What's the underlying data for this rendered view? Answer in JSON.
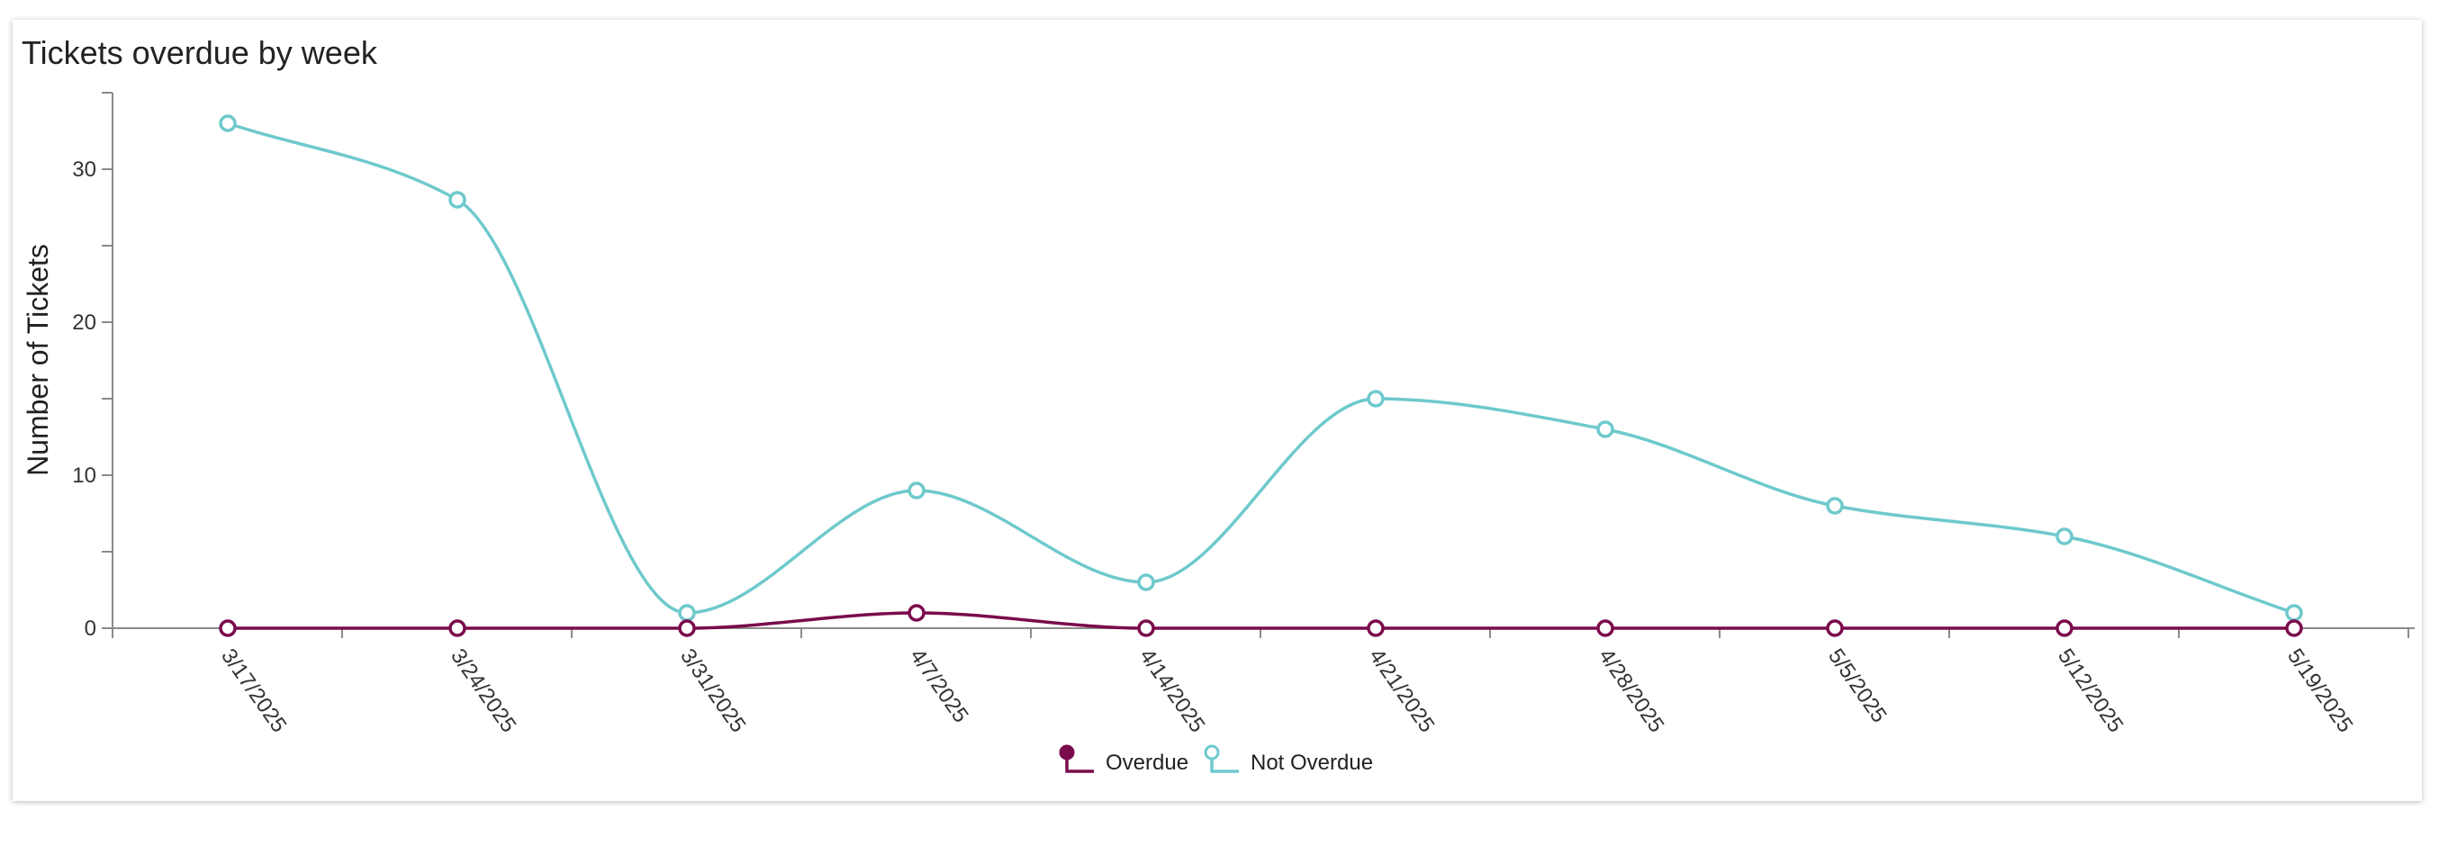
{
  "card": {
    "title": "Tickets overdue by week"
  },
  "chart_data": {
    "type": "line",
    "title": "Tickets overdue by week",
    "xlabel": "",
    "ylabel": "Number of Tickets",
    "categories": [
      "3/17/2025",
      "3/24/2025",
      "3/31/2025",
      "4/7/2025",
      "4/14/2025",
      "4/21/2025",
      "4/28/2025",
      "5/5/2025",
      "5/12/2025",
      "5/19/2025"
    ],
    "series": [
      {
        "name": "Overdue",
        "color": "#7a0b4c",
        "values": [
          0,
          0,
          0,
          1,
          0,
          0,
          0,
          0,
          0,
          0
        ]
      },
      {
        "name": "Not Overdue",
        "color": "#6ec9cc",
        "values": [
          33,
          28,
          1,
          9,
          3,
          15,
          13,
          8,
          6,
          1
        ]
      }
    ],
    "ylim": [
      0,
      35
    ],
    "yticks": [
      0,
      10,
      20,
      30
    ],
    "grid": false,
    "legend": "bottom-center",
    "curve": "smooth"
  }
}
